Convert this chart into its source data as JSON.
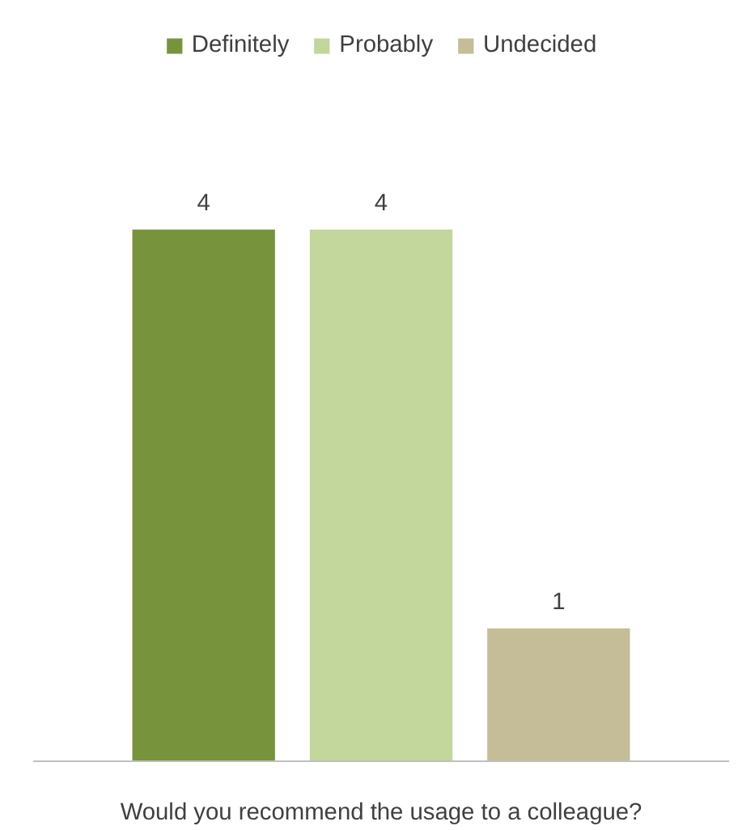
{
  "chart_data": {
    "type": "bar",
    "xlabel": "Would you recommend the usage to a colleague?",
    "categories": [
      null
    ],
    "series": [
      {
        "name": "Definitely",
        "color": "#77933c",
        "values": [
          4
        ]
      },
      {
        "name": "Probably",
        "color": "#c3d69b",
        "values": [
          4
        ]
      },
      {
        "name": "Undecided",
        "color": "#c4bd97",
        "values": [
          1
        ]
      }
    ],
    "data_labels": true,
    "legend": "top"
  }
}
